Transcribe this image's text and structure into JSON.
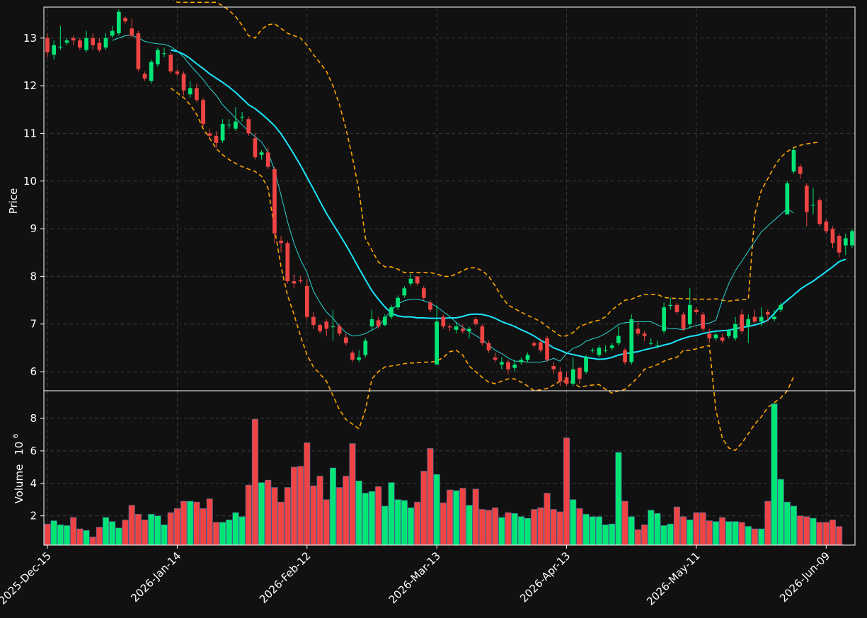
{
  "chart_data": [
    {
      "type": "candlestick",
      "panel": "price",
      "ylabel": "Price",
      "ylim": [
        5.6,
        13.65
      ],
      "yticks": [
        "6",
        "7",
        "8",
        "9",
        "10",
        "11",
        "12",
        "13"
      ],
      "xticks": [
        "2025-Dec-15",
        "2026-Jan-14",
        "2026-Feb-12",
        "2026-Mar-13",
        "2026-Apr-13",
        "2026-May-11",
        "2026-Jun-09"
      ],
      "xtick_index": [
        0,
        20,
        40,
        60,
        80,
        100,
        120
      ],
      "grid": true,
      "colors": {
        "up": "#00e676",
        "down": "#ef4444",
        "ma_fast": "#2ad4d4",
        "ma_slow": "#19e6ff",
        "bands": "#ffa500",
        "background": "#111111"
      },
      "closes": [
        12.7,
        12.85,
        12.82,
        12.95,
        12.95,
        12.8,
        13.0,
        12.85,
        12.75,
        13.0,
        13.15,
        13.55,
        13.35,
        13.05,
        12.35,
        12.15,
        12.5,
        12.75,
        12.68,
        12.3,
        12.25,
        11.9,
        11.95,
        11.7,
        11.2,
        10.95,
        10.8,
        11.2,
        11.18,
        11.25,
        11.35,
        11.0,
        10.5,
        10.6,
        10.3,
        8.9,
        8.7,
        7.9,
        7.85,
        7.9,
        7.15,
        6.98,
        6.85,
        6.9,
        6.95,
        6.8,
        6.6,
        6.25,
        6.3,
        6.65,
        7.1,
        6.95,
        7.15,
        7.35,
        7.55,
        7.75,
        7.95,
        7.85,
        7.55,
        7.3,
        7.05,
        6.95,
        6.93,
        6.95,
        6.85,
        6.9,
        7.0,
        6.6,
        6.45,
        6.25,
        6.2,
        6.05,
        6.15,
        6.25,
        6.35,
        6.55,
        6.45,
        6.25,
        6.05,
        5.8,
        5.75,
        6.05,
        5.85,
        6.3,
        6.45,
        6.5,
        6.45,
        6.55,
        6.75,
        6.2,
        7.1,
        6.8,
        6.75,
        6.6,
        6.55,
        7.35,
        7.4,
        7.25,
        6.9,
        7.4,
        7.25,
        6.9,
        6.7,
        6.78,
        6.65,
        6.85,
        7.0,
        6.85,
        7.1,
        7.05,
        7.15,
        7.2,
        7.15,
        7.4,
        9.95,
        10.65,
        10.15,
        9.35,
        9.5,
        9.1,
        8.95,
        8.7,
        8.5,
        8.8,
        8.95
      ],
      "opens": [
        13.0,
        12.65,
        12.8,
        12.9,
        13.0,
        12.95,
        12.75,
        13.0,
        12.9,
        12.8,
        13.05,
        13.1,
        13.42,
        13.2,
        13.1,
        12.25,
        12.1,
        12.45,
        12.68,
        12.65,
        12.3,
        12.25,
        11.82,
        11.95,
        11.7,
        11.0,
        10.95,
        10.85,
        11.18,
        11.1,
        11.35,
        11.3,
        10.9,
        10.55,
        10.6,
        10.25,
        8.75,
        8.7,
        7.9,
        7.92,
        7.8,
        7.15,
        6.98,
        7.05,
        6.95,
        6.95,
        6.72,
        6.4,
        6.25,
        6.35,
        6.95,
        7.08,
        6.98,
        7.15,
        7.35,
        7.6,
        7.85,
        8.0,
        7.75,
        7.45,
        6.15,
        7.15,
        6.95,
        6.88,
        6.9,
        6.85,
        7.1,
        6.95,
        6.6,
        6.3,
        6.15,
        6.2,
        6.08,
        6.2,
        6.25,
        6.6,
        6.62,
        6.7,
        6.12,
        6.0,
        5.88,
        5.75,
        6.08,
        6.0,
        6.45,
        6.35,
        6.45,
        6.5,
        6.6,
        6.45,
        6.2,
        6.9,
        6.8,
        6.6,
        6.55,
        6.85,
        7.38,
        7.4,
        7.2,
        7.0,
        7.3,
        7.2,
        6.8,
        6.7,
        6.72,
        6.75,
        6.7,
        7.2,
        6.95,
        7.15,
        7.05,
        7.25,
        7.1,
        7.3,
        9.3,
        10.2,
        10.3,
        9.9,
        9.5,
        9.6,
        9.15,
        9.0,
        8.85,
        8.65,
        8.65
      ],
      "highs": [
        13.1,
        12.95,
        13.25,
        13.0,
        13.05,
        13.0,
        13.15,
        13.1,
        13.0,
        13.1,
        13.25,
        13.6,
        13.45,
        13.4,
        13.15,
        12.3,
        12.55,
        12.8,
        12.8,
        12.7,
        12.35,
        12.3,
        12.1,
        12.05,
        11.75,
        11.1,
        11.05,
        11.3,
        11.3,
        11.55,
        11.45,
        11.35,
        11.0,
        10.65,
        10.7,
        10.3,
        8.85,
        8.75,
        8.05,
        8.0,
        7.95,
        7.25,
        7.0,
        7.1,
        7.3,
        7.0,
        6.8,
        6.45,
        6.45,
        6.7,
        7.3,
        7.15,
        7.2,
        7.4,
        7.6,
        7.8,
        8.05,
        8.0,
        7.8,
        7.5,
        7.4,
        7.2,
        7.0,
        7.05,
        7.0,
        6.95,
        7.15,
        7.0,
        6.65,
        6.4,
        6.3,
        6.25,
        6.25,
        6.3,
        6.4,
        6.65,
        6.7,
        6.75,
        6.2,
        6.1,
        6.0,
        6.3,
        6.1,
        6.35,
        6.5,
        6.55,
        6.55,
        6.6,
        6.95,
        6.5,
        7.2,
        7.05,
        6.85,
        6.7,
        6.65,
        7.45,
        7.55,
        7.45,
        7.25,
        7.75,
        7.35,
        7.25,
        6.9,
        6.82,
        6.8,
        6.9,
        7.15,
        7.3,
        7.2,
        7.3,
        7.35,
        7.3,
        7.3,
        7.45,
        10.0,
        10.7,
        10.35,
        9.95,
        9.85,
        9.65,
        9.2,
        9.05,
        8.9,
        8.9,
        9.0
      ],
      "lows": [
        12.6,
        12.55,
        12.75,
        12.85,
        12.85,
        12.75,
        12.7,
        12.75,
        12.7,
        12.75,
        13.0,
        13.05,
        13.3,
        13.0,
        12.3,
        12.1,
        12.05,
        12.4,
        12.6,
        12.25,
        12.2,
        11.8,
        11.75,
        11.65,
        11.15,
        10.9,
        10.7,
        10.8,
        11.1,
        11.05,
        11.25,
        10.95,
        10.45,
        10.45,
        10.25,
        8.7,
        8.5,
        7.85,
        7.75,
        7.85,
        7.1,
        6.9,
        6.8,
        6.75,
        6.65,
        6.75,
        6.55,
        6.2,
        6.2,
        6.3,
        6.85,
        6.9,
        6.95,
        7.1,
        7.3,
        7.55,
        7.8,
        7.8,
        7.5,
        7.25,
        6.15,
        6.9,
        6.85,
        6.8,
        6.8,
        6.7,
        6.95,
        6.55,
        6.4,
        6.2,
        6.05,
        5.95,
        6.0,
        6.15,
        6.2,
        6.5,
        6.4,
        6.2,
        5.95,
        5.7,
        5.7,
        5.7,
        5.75,
        5.95,
        6.4,
        6.3,
        6.4,
        6.45,
        6.55,
        6.15,
        6.15,
        6.75,
        6.65,
        6.55,
        6.5,
        6.8,
        7.3,
        7.2,
        6.85,
        6.9,
        7.2,
        6.85,
        6.6,
        6.65,
        6.6,
        6.7,
        6.65,
        6.8,
        6.6,
        7.0,
        6.95,
        7.05,
        7.05,
        7.25,
        9.3,
        10.15,
        10.05,
        9.05,
        9.3,
        9.05,
        8.9,
        8.6,
        8.4,
        8.45,
        8.6
      ],
      "ma_fast": [
        null,
        null,
        null,
        null,
        null,
        null,
        null,
        null,
        null,
        null,
        12.95,
        13.0,
        13.05,
        13.06,
        13.0,
        12.93,
        12.9,
        12.88,
        12.87,
        12.82,
        12.73,
        12.6,
        12.43,
        12.28,
        12.13,
        11.95,
        11.8,
        11.6,
        11.46,
        11.32,
        11.18,
        11.05,
        10.93,
        10.82,
        10.6,
        10.23,
        9.7,
        9.15,
        8.69,
        8.35,
        8.08,
        7.69,
        7.45,
        7.25,
        7.12,
        6.95,
        6.82,
        6.75,
        6.76,
        6.8,
        6.87,
        6.95,
        7.12,
        7.29,
        7.42,
        7.49,
        7.52,
        7.52,
        7.49,
        7.44,
        7.36,
        7.26,
        7.16,
        7.03,
        6.93,
        6.84,
        6.76,
        6.67,
        6.56,
        6.45,
        6.38,
        6.29,
        6.22,
        6.22,
        6.2,
        6.2,
        6.2,
        6.23,
        6.28,
        6.22,
        6.38,
        6.49,
        6.54,
        6.64,
        6.69,
        6.73,
        6.8,
        6.89,
        6.99,
        7.03,
        7.04,
        7.05,
        7.05,
        7.05,
        6.98,
        6.93,
        6.9,
        6.9,
        6.88,
        6.93,
        6.97,
        7.0,
        7.02,
        7.08,
        7.5,
        7.85,
        8.12,
        8.32,
        8.53,
        8.73,
        8.93,
        9.06,
        9.18,
        9.3,
        9.42,
        9.33
      ],
      "ma_slow": [
        null,
        null,
        null,
        null,
        null,
        null,
        null,
        null,
        null,
        null,
        null,
        null,
        null,
        null,
        null,
        null,
        null,
        null,
        null,
        12.75,
        12.72,
        12.66,
        12.57,
        12.46,
        12.36,
        12.25,
        12.16,
        12.07,
        11.97,
        11.86,
        11.73,
        11.6,
        11.52,
        11.41,
        11.29,
        11.16,
        10.99,
        10.78,
        10.56,
        10.33,
        10.08,
        9.83,
        9.57,
        9.32,
        9.1,
        8.88,
        8.66,
        8.42,
        8.17,
        7.93,
        7.7,
        7.52,
        7.36,
        7.23,
        7.17,
        7.15,
        7.15,
        7.13,
        7.13,
        7.12,
        7.12,
        7.12,
        7.13,
        7.13,
        7.16,
        7.2,
        7.21,
        7.2,
        7.17,
        7.12,
        7.05,
        7.0,
        6.95,
        6.88,
        6.82,
        6.75,
        6.66,
        6.59,
        6.5,
        6.45,
        6.39,
        6.36,
        6.33,
        6.3,
        6.28,
        6.26,
        6.27,
        6.3,
        6.35,
        6.38,
        6.4,
        6.42,
        6.46,
        6.49,
        6.52,
        6.56,
        6.59,
        6.65,
        6.7,
        6.74,
        6.76,
        6.8,
        6.83,
        6.85,
        6.86,
        6.87,
        6.9,
        6.93,
        6.95,
        6.98,
        7.02,
        7.08,
        7.22,
        7.38,
        7.5,
        7.61,
        7.73,
        7.82,
        7.9,
        8.0,
        8.1,
        8.2,
        8.31,
        8.36
      ],
      "band_upper": [
        null,
        null,
        null,
        null,
        null,
        null,
        null,
        null,
        null,
        null,
        null,
        null,
        null,
        null,
        null,
        null,
        null,
        null,
        null,
        13.85,
        13.75,
        13.75,
        13.75,
        13.75,
        13.75,
        13.75,
        13.75,
        13.68,
        13.58,
        13.45,
        13.27,
        13.05,
        13.0,
        13.18,
        13.28,
        13.3,
        13.2,
        13.1,
        13.05,
        13.0,
        12.85,
        12.65,
        12.48,
        12.3,
        12.0,
        11.6,
        11.1,
        10.5,
        9.8,
        8.8,
        8.55,
        8.3,
        8.2,
        8.2,
        8.15,
        8.08,
        8.08,
        8.08,
        8.08,
        8.08,
        8.05,
        8.0,
        8.0,
        8.05,
        8.12,
        8.18,
        8.18,
        8.12,
        8.0,
        7.8,
        7.57,
        7.4,
        7.32,
        7.25,
        7.18,
        7.12,
        7.05,
        6.95,
        6.85,
        6.75,
        6.75,
        6.82,
        6.95,
        7.0,
        7.05,
        7.08,
        7.15,
        7.3,
        7.4,
        7.5,
        7.52,
        7.58,
        7.62,
        7.62,
        7.62,
        7.56,
        7.54,
        7.54,
        7.53,
        7.53,
        7.52,
        7.52,
        7.52,
        7.53,
        7.5,
        7.48,
        7.5,
        7.51,
        7.52,
        9.3,
        9.8,
        10.05,
        10.3,
        10.5,
        10.62,
        10.7,
        10.75,
        10.78,
        10.8,
        10.82
      ],
      "band_lower": [
        null,
        null,
        null,
        null,
        null,
        null,
        null,
        null,
        null,
        null,
        null,
        null,
        null,
        null,
        null,
        null,
        null,
        null,
        null,
        11.95,
        11.85,
        11.75,
        11.6,
        11.4,
        11.1,
        10.9,
        10.68,
        10.55,
        10.45,
        10.37,
        10.3,
        10.25,
        10.2,
        10.1,
        9.85,
        9.0,
        8.2,
        7.6,
        7.2,
        6.75,
        6.35,
        6.1,
        5.95,
        5.8,
        5.5,
        5.2,
        5.0,
        4.9,
        4.8,
        5.2,
        5.85,
        6.0,
        6.1,
        6.12,
        6.14,
        6.17,
        6.18,
        6.19,
        6.2,
        6.2,
        6.22,
        6.3,
        6.42,
        6.45,
        6.35,
        6.12,
        6.0,
        5.88,
        5.78,
        5.75,
        5.8,
        5.85,
        5.85,
        5.78,
        5.7,
        5.6,
        5.62,
        5.65,
        5.72,
        5.8,
        5.8,
        5.77,
        5.68,
        5.7,
        5.72,
        5.73,
        5.63,
        5.55,
        5.6,
        5.63,
        5.75,
        5.88,
        6.05,
        6.1,
        6.15,
        6.22,
        6.27,
        6.3,
        6.45,
        6.45,
        6.48,
        6.52,
        6.55,
        5.2,
        4.6,
        4.4,
        4.35,
        4.5,
        4.7,
        4.9,
        5.05,
        5.25,
        5.35,
        5.45,
        5.6,
        5.9
      ]
    },
    {
      "type": "bar",
      "panel": "volume",
      "ylabel": "Volume",
      "ylabel_exponent": "10",
      "ylabel_exponent_power": "6",
      "ylim": [
        0.2,
        9.7
      ],
      "yticks": [
        "2",
        "4",
        "6",
        "8"
      ],
      "grid": true,
      "values": [
        1.5,
        1.7,
        1.45,
        1.4,
        1.9,
        1.2,
        1.1,
        0.7,
        1.3,
        1.9,
        1.65,
        1.25,
        1.75,
        2.65,
        2.1,
        1.75,
        2.1,
        2.0,
        1.45,
        2.2,
        2.45,
        2.9,
        2.9,
        2.85,
        2.45,
        3.05,
        1.6,
        1.6,
        1.75,
        2.2,
        1.95,
        3.9,
        7.95,
        4.05,
        4.2,
        3.75,
        2.85,
        3.75,
        5.0,
        5.05,
        6.5,
        3.85,
        4.45,
        3.0,
        4.95,
        3.75,
        4.45,
        6.45,
        4.15,
        3.4,
        3.5,
        3.8,
        2.6,
        4.05,
        3.0,
        2.95,
        2.5,
        2.85,
        4.75,
        6.15,
        4.55,
        2.8,
        3.6,
        3.55,
        3.7,
        2.65,
        3.65,
        2.4,
        2.35,
        2.5,
        1.9,
        2.2,
        2.15,
        1.95,
        1.85,
        2.4,
        2.5,
        3.4,
        2.4,
        2.25,
        6.8,
        3.0,
        2.45,
        2.1,
        1.95,
        1.95,
        1.45,
        1.5,
        5.9,
        2.9,
        1.95,
        1.15,
        1.45,
        2.35,
        2.15,
        1.4,
        1.5,
        2.55,
        1.95,
        1.75,
        2.2,
        2.2,
        1.7,
        1.65,
        1.9,
        1.65,
        1.65,
        1.6,
        1.35,
        1.2,
        1.2,
        2.9,
        8.9,
        4.25,
        2.85,
        2.6,
        2.0,
        1.95,
        1.85,
        1.6,
        1.6,
        1.75,
        1.35
      ]
    }
  ]
}
